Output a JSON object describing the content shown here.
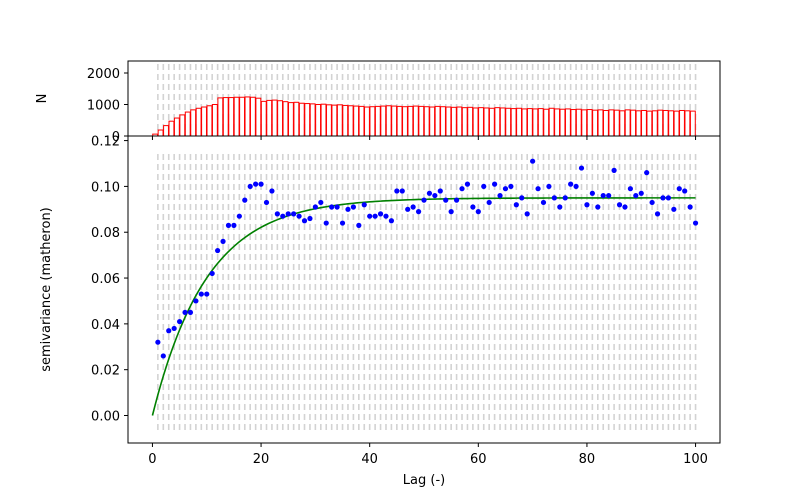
{
  "chart_data": [
    {
      "type": "bar",
      "panel": "histogram",
      "ylabel": "N",
      "xlim": [
        -4.5,
        104.5
      ],
      "ylim": [
        0,
        2000
      ],
      "yticks": [
        2000,
        1000,
        0
      ],
      "bar_color": "#ff0000",
      "grid_color": "#d3d3d3",
      "bins_x": [
        1,
        2,
        3,
        4,
        5,
        6,
        7,
        8,
        9,
        10,
        11,
        12,
        13,
        14,
        15,
        16,
        17,
        18,
        19,
        20,
        21,
        22,
        23,
        24,
        25,
        26,
        27,
        28,
        29,
        30,
        31,
        32,
        33,
        34,
        35,
        36,
        37,
        38,
        39,
        40,
        41,
        42,
        43,
        44,
        45,
        46,
        47,
        48,
        49,
        50,
        51,
        52,
        53,
        54,
        55,
        56,
        57,
        58,
        59,
        60,
        61,
        62,
        63,
        64,
        65,
        66,
        67,
        68,
        69,
        70,
        71,
        72,
        73,
        74,
        75,
        76,
        77,
        78,
        79,
        80,
        81,
        82,
        83,
        84,
        85,
        86,
        87,
        88,
        89,
        90,
        91,
        92,
        93,
        94,
        95,
        96,
        97,
        98,
        99,
        100
      ],
      "values": [
        60,
        190,
        330,
        470,
        570,
        670,
        760,
        830,
        880,
        920,
        960,
        1000,
        1210,
        1220,
        1220,
        1230,
        1230,
        1240,
        1230,
        1200,
        1100,
        1130,
        1140,
        1120,
        1090,
        1060,
        1070,
        1040,
        1030,
        1020,
        1000,
        1010,
        990,
        980,
        990,
        970,
        960,
        950,
        940,
        920,
        930,
        940,
        950,
        960,
        950,
        940,
        930,
        940,
        950,
        940,
        930,
        920,
        940,
        930,
        920,
        910,
        920,
        900,
        910,
        890,
        900,
        890,
        880,
        900,
        890,
        880,
        870,
        880,
        860,
        870,
        860,
        870,
        850,
        880,
        860,
        850,
        860,
        840,
        850,
        830,
        840,
        820,
        830,
        810,
        830,
        820,
        800,
        830,
        820,
        800,
        810,
        790,
        800,
        820,
        810,
        800,
        790,
        810,
        800,
        790
      ]
    },
    {
      "type": "scatter",
      "panel": "variogram",
      "xlabel": "Lag (-)",
      "ylabel": "semivariance (matheron)",
      "xlim": [
        -4.5,
        104.5
      ],
      "ylim": [
        -0.012,
        0.122
      ],
      "xticks": [
        0,
        20,
        40,
        60,
        80,
        100
      ],
      "yticks": [
        0.0,
        0.02,
        0.04,
        0.06,
        0.08,
        0.1,
        0.12
      ],
      "ytick_labels": [
        "0.00",
        "0.02",
        "0.04",
        "0.06",
        "0.08",
        "0.10",
        "0.12"
      ],
      "point_color": "#0000ff",
      "model_color": "#008000",
      "grid_color": "#d3d3d3",
      "x": [
        1,
        2,
        3,
        4,
        5,
        6,
        7,
        8,
        9,
        10,
        11,
        12,
        13,
        14,
        15,
        16,
        17,
        18,
        19,
        20,
        21,
        22,
        23,
        24,
        25,
        26,
        27,
        28,
        29,
        30,
        31,
        32,
        33,
        34,
        35,
        36,
        37,
        38,
        39,
        40,
        41,
        42,
        43,
        44,
        45,
        46,
        47,
        48,
        49,
        50,
        51,
        52,
        53,
        54,
        55,
        56,
        57,
        58,
        59,
        60,
        61,
        62,
        63,
        64,
        65,
        66,
        67,
        68,
        69,
        70,
        71,
        72,
        73,
        74,
        75,
        76,
        77,
        78,
        79,
        80,
        81,
        82,
        83,
        84,
        85,
        86,
        87,
        88,
        89,
        90,
        91,
        92,
        93,
        94,
        95,
        96,
        97,
        98,
        99,
        100
      ],
      "values": [
        0.032,
        0.026,
        0.037,
        0.038,
        0.041,
        0.045,
        0.045,
        0.05,
        0.053,
        0.053,
        0.062,
        0.072,
        0.076,
        0.083,
        0.083,
        0.087,
        0.094,
        0.1,
        0.101,
        0.101,
        0.093,
        0.098,
        0.088,
        0.087,
        0.088,
        0.088,
        0.087,
        0.085,
        0.086,
        0.091,
        0.093,
        0.084,
        0.091,
        0.091,
        0.084,
        0.09,
        0.091,
        0.083,
        0.092,
        0.087,
        0.087,
        0.088,
        0.087,
        0.085,
        0.098,
        0.098,
        0.09,
        0.091,
        0.089,
        0.094,
        0.097,
        0.096,
        0.098,
        0.094,
        0.089,
        0.094,
        0.099,
        0.101,
        0.091,
        0.089,
        0.1,
        0.093,
        0.101,
        0.096,
        0.099,
        0.1,
        0.092,
        0.095,
        0.088,
        0.111,
        0.099,
        0.093,
        0.1,
        0.095,
        0.091,
        0.095,
        0.101,
        0.1,
        0.108,
        0.092,
        0.097,
        0.091,
        0.096,
        0.096,
        0.107,
        0.092,
        0.091,
        0.099,
        0.096,
        0.097,
        0.106,
        0.093,
        0.088,
        0.095,
        0.095,
        0.09,
        0.099,
        0.098,
        0.091,
        0.084
      ],
      "model": {
        "type": "exponential",
        "sill": 0.095,
        "effective_range": 30,
        "nugget": 0.0,
        "x_start": 0,
        "x_end": 100
      }
    }
  ]
}
